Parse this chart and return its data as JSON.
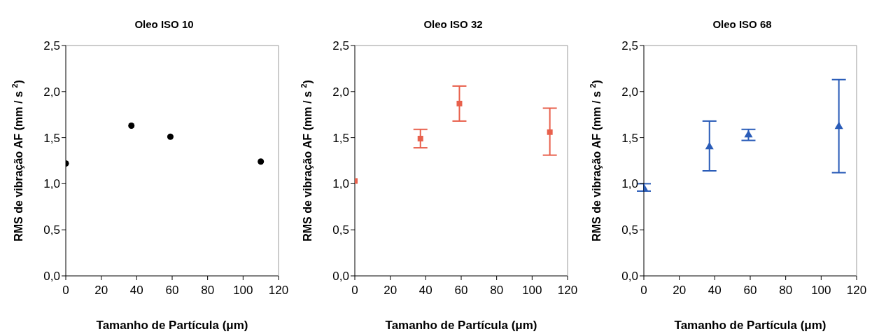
{
  "chart_data": [
    {
      "type": "scatter",
      "title": "Oleo ISO 10",
      "xlabel": "Tamanho de Partícula (μm)",
      "ylabel": "RMS de vibração AF (mm / s $^{2}$)",
      "x": [
        0,
        37,
        59,
        110
      ],
      "values": [
        1.22,
        1.63,
        1.51,
        1.24
      ],
      "color": "#000000",
      "marker": "circle",
      "xlim": [
        0,
        120
      ],
      "xticks": [
        0,
        20,
        40,
        60,
        80,
        100,
        120
      ],
      "ylim": [
        0,
        2.5
      ],
      "yticks": [
        {
          "value": 0,
          "label": "0,0"
        },
        {
          "value": 0.5,
          "label": "0,5"
        },
        {
          "value": 1,
          "label": "1,0"
        },
        {
          "value": 1.5,
          "label": "1,5"
        },
        {
          "value": 2,
          "label": "2,0"
        },
        {
          "value": 2.5,
          "label": "2,5"
        }
      ],
      "grid": false,
      "legend": false
    },
    {
      "type": "scatter",
      "title": "Oleo ISO 32",
      "xlabel": "Tamanho de Partícula (μm)",
      "ylabel": "RMS de vibração AF (mm / s $^{2}$)",
      "x": [
        0,
        37,
        59,
        110
      ],
      "values": [
        1.03,
        1.49,
        1.87,
        1.56
      ],
      "errors": [
        null,
        [
          1.39,
          1.59
        ],
        [
          1.68,
          2.06
        ],
        [
          1.31,
          1.82
        ]
      ],
      "color": "#e8604c",
      "marker": "square",
      "xlim": [
        0,
        120
      ],
      "xticks": [
        0,
        20,
        40,
        60,
        80,
        100,
        120
      ],
      "ylim": [
        0,
        2.5
      ],
      "yticks": [
        {
          "value": 0,
          "label": "0,0"
        },
        {
          "value": 0.5,
          "label": "0,5"
        },
        {
          "value": 1,
          "label": "1,0"
        },
        {
          "value": 1.5,
          "label": "1,5"
        },
        {
          "value": 2,
          "label": "2,0"
        },
        {
          "value": 2.5,
          "label": "2,5"
        }
      ],
      "grid": false,
      "legend": false
    },
    {
      "type": "scatter",
      "title": "Oleo ISO 68",
      "xlabel": "Tamanho de Partícula (μm)",
      "ylabel": "RMS de vibração AF (mm / s $^{2}$)",
      "x": [
        0,
        37,
        59,
        110
      ],
      "values": [
        0.95,
        1.4,
        1.53,
        1.62
      ],
      "errors": [
        [
          0.92,
          1.0
        ],
        [
          1.14,
          1.68
        ],
        [
          1.47,
          1.59
        ],
        [
          1.12,
          2.13
        ]
      ],
      "color": "#2a5cb8",
      "marker": "triangle",
      "xlim": [
        0,
        120
      ],
      "xticks": [
        0,
        20,
        40,
        60,
        80,
        100,
        120
      ],
      "ylim": [
        0,
        2.5
      ],
      "yticks": [
        {
          "value": 0,
          "label": "0,0"
        },
        {
          "value": 0.5,
          "label": "0,5"
        },
        {
          "value": 1,
          "label": "1,0"
        },
        {
          "value": 1.5,
          "label": "1,5"
        },
        {
          "value": 2,
          "label": "2,0"
        },
        {
          "value": 2.5,
          "label": "2,5"
        }
      ],
      "grid": false,
      "legend": false
    }
  ]
}
